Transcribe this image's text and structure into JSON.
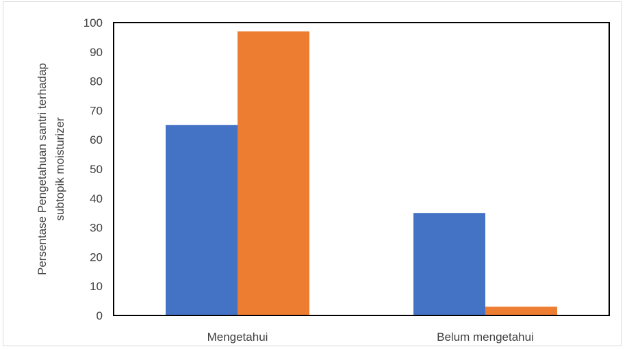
{
  "chart_data": {
    "type": "bar",
    "categories": [
      "Mengetahui",
      "Belum mengetahui"
    ],
    "series": [
      {
        "values": [
          65,
          35
        ],
        "color": "#4472C4"
      },
      {
        "values": [
          97,
          3
        ],
        "color": "#ED7D31"
      }
    ],
    "title": "",
    "xlabel": "",
    "ylabel_lines": [
      "Persentase Pengetahuan santri terhadap",
      "subtopik moisturizer"
    ],
    "ylim": [
      0,
      100
    ],
    "yticks": [
      0,
      10,
      20,
      30,
      40,
      50,
      60,
      70,
      80,
      90,
      100
    ],
    "grid": false,
    "legend": "none"
  }
}
